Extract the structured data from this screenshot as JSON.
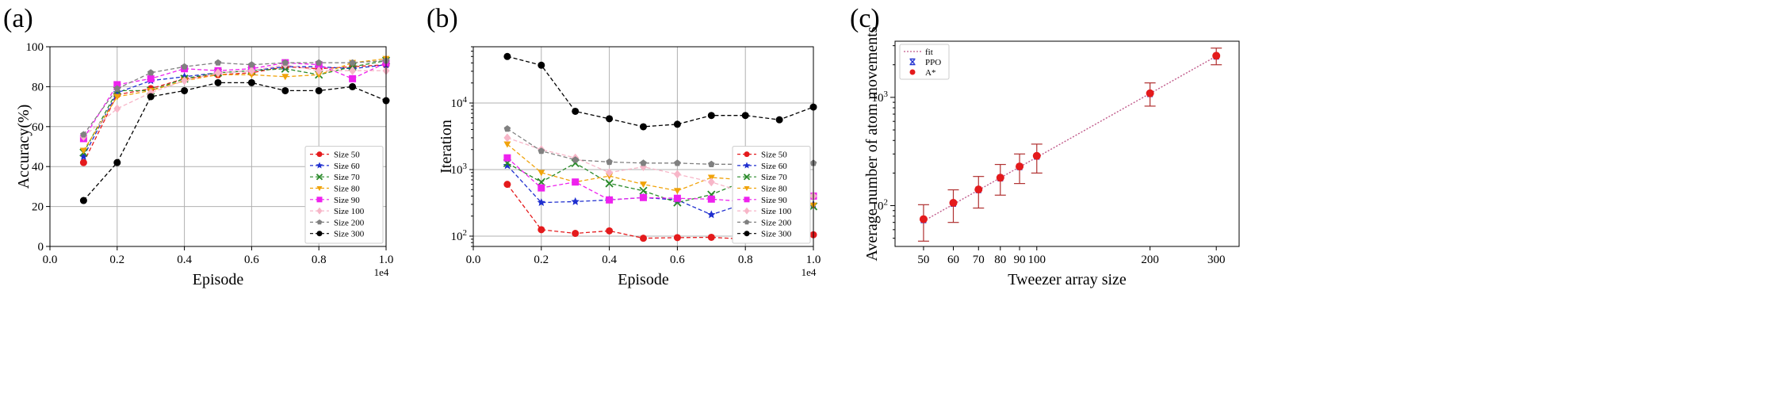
{
  "chart_data": [
    {
      "panel_label": "(a)",
      "type": "line",
      "xlabel": "Episode",
      "ylabel": "Accuracy(%)",
      "x_multiplier": "1e4",
      "xlim": [
        0.0,
        1.0
      ],
      "ylim": [
        0,
        100
      ],
      "xticks": [
        "0.0",
        "0.2",
        "0.4",
        "0.6",
        "0.8",
        "1.0"
      ],
      "yticks": [
        "0",
        "20",
        "40",
        "60",
        "80",
        "100"
      ],
      "grid": true,
      "legend_position": "lower-right",
      "x": [
        0.1,
        0.2,
        0.3,
        0.4,
        0.5,
        0.6,
        0.7,
        0.8,
        0.9,
        1.0
      ],
      "series": [
        {
          "name": "Size 50",
          "color": "#e41a1c",
          "marker": "circle",
          "values": [
            42,
            76,
            79,
            84,
            86,
            87,
            90,
            89,
            90,
            91
          ]
        },
        {
          "name": "Size 60",
          "color": "#1f2fcf",
          "marker": "star",
          "values": [
            45,
            77,
            83,
            85,
            87,
            88,
            90,
            90,
            89,
            91
          ]
        },
        {
          "name": "Size 70",
          "color": "#2a8a2a",
          "marker": "x",
          "values": [
            47,
            78,
            78,
            84,
            87,
            88,
            89,
            86,
            90,
            93
          ]
        },
        {
          "name": "Size 80",
          "color": "#f0a30a",
          "marker": "triangle-down",
          "values": [
            48,
            75,
            78,
            83,
            86,
            86,
            85,
            86,
            92,
            94
          ]
        },
        {
          "name": "Size 90",
          "color": "#ee22ee",
          "marker": "square",
          "values": [
            54,
            81,
            84,
            89,
            88,
            89,
            92,
            91,
            84,
            92
          ]
        },
        {
          "name": "Size 100",
          "color": "#f7b6c8",
          "marker": "diamond",
          "values": [
            55,
            69,
            77,
            83,
            87,
            88,
            91,
            88,
            88,
            88
          ]
        },
        {
          "name": "Size 200",
          "color": "#808080",
          "marker": "pentagon",
          "values": [
            56,
            79,
            87,
            90,
            92,
            91,
            92,
            92,
            92,
            93
          ]
        },
        {
          "name": "Size 300",
          "color": "#000000",
          "marker": "circle",
          "values": [
            23,
            42,
            75,
            78,
            82,
            82,
            78,
            78,
            80,
            73
          ]
        }
      ]
    },
    {
      "panel_label": "(b)",
      "type": "line",
      "xlabel": "Episode",
      "ylabel": "Iteration",
      "y_scale": "log",
      "x_multiplier": "1e4",
      "xlim": [
        0.0,
        1.0
      ],
      "ylim": [
        70,
        70000
      ],
      "xticks": [
        "0.0",
        "0.2",
        "0.4",
        "0.6",
        "0.8",
        "1.0"
      ],
      "yticks": [
        {
          "value": 100,
          "base": "10",
          "exp": "2"
        },
        {
          "value": 1000,
          "base": "10",
          "exp": "3"
        },
        {
          "value": 10000,
          "base": "10",
          "exp": "4"
        }
      ],
      "grid": true,
      "legend_position": "lower-right",
      "x": [
        0.1,
        0.2,
        0.3,
        0.4,
        0.5,
        0.6,
        0.7,
        0.8,
        0.9,
        1.0
      ],
      "series": [
        {
          "name": "Size 50",
          "color": "#e41a1c",
          "marker": "circle",
          "values": [
            600,
            125,
            110,
            120,
            93,
            95,
            96,
            90,
            88,
            105
          ]
        },
        {
          "name": "Size 60",
          "color": "#1f2fcf",
          "marker": "star",
          "values": [
            1150,
            320,
            330,
            350,
            380,
            350,
            210,
            310,
            380,
            300
          ]
        },
        {
          "name": "Size 70",
          "color": "#2a8a2a",
          "marker": "x",
          "values": [
            1250,
            650,
            1250,
            620,
            480,
            320,
            420,
            680,
            360,
            280
          ]
        },
        {
          "name": "Size 80",
          "color": "#f0a30a",
          "marker": "triangle-down",
          "values": [
            2400,
            900,
            650,
            800,
            600,
            480,
            760,
            700,
            420,
            290
          ]
        },
        {
          "name": "Size 90",
          "color": "#ee22ee",
          "marker": "square",
          "values": [
            1500,
            530,
            650,
            350,
            380,
            370,
            360,
            330,
            1250,
            400
          ]
        },
        {
          "name": "Size 100",
          "color": "#f7b6c8",
          "marker": "diamond",
          "values": [
            3000,
            2000,
            1500,
            900,
            1100,
            850,
            650,
            450,
            700,
            400
          ]
        },
        {
          "name": "Size 200",
          "color": "#808080",
          "marker": "pentagon",
          "values": [
            4100,
            1900,
            1400,
            1300,
            1250,
            1250,
            1200,
            1200,
            1200,
            1250
          ]
        },
        {
          "name": "Size 300",
          "color": "#000000",
          "marker": "circle",
          "values": [
            50000,
            37000,
            7500,
            5800,
            4400,
            4800,
            6500,
            6500,
            5600,
            8700
          ]
        }
      ]
    },
    {
      "panel_label": "(c)",
      "type": "scatter",
      "xlabel": "Tweezer array size",
      "ylabel": "Average number of atom movements",
      "x_scale": "log",
      "y_scale": "log",
      "xlim": [
        42,
        345
      ],
      "ylim": [
        42,
        3300
      ],
      "xticks": [
        "50",
        "60",
        "70",
        "80",
        "90",
        "100",
        "200",
        "300"
      ],
      "xtick_values": [
        50,
        60,
        70,
        80,
        90,
        100,
        200,
        300
      ],
      "yticks": [
        {
          "value": 100,
          "base": "10",
          "exp": "2"
        },
        {
          "value": 1000,
          "base": "10",
          "exp": "3"
        }
      ],
      "grid": false,
      "legend_position": "top-left",
      "fit": {
        "name": "fit",
        "color": "#c05a8a",
        "x": [
          50,
          300
        ],
        "values": [
          72,
          2400
        ]
      },
      "series": [
        {
          "name": "PPO",
          "color": "#1f2fcf",
          "marker": "x-errorbar",
          "x": [
            50,
            60,
            70,
            80,
            90,
            100,
            200,
            300
          ],
          "values": [
            74,
            105,
            140,
            180,
            228,
            285,
            1080,
            2400
          ]
        },
        {
          "name": "A*",
          "color": "#e41a1c",
          "marker": "circle",
          "x": [
            50,
            60,
            70,
            80,
            90,
            100,
            200,
            300
          ],
          "values": [
            75,
            106,
            141,
            181,
            230,
            288,
            1090,
            2420
          ],
          "err_low": [
            47,
            70,
            95,
            125,
            160,
            200,
            830,
            2000
          ],
          "err_high": [
            102,
            140,
            186,
            240,
            300,
            370,
            1360,
            2850
          ]
        }
      ]
    }
  ]
}
